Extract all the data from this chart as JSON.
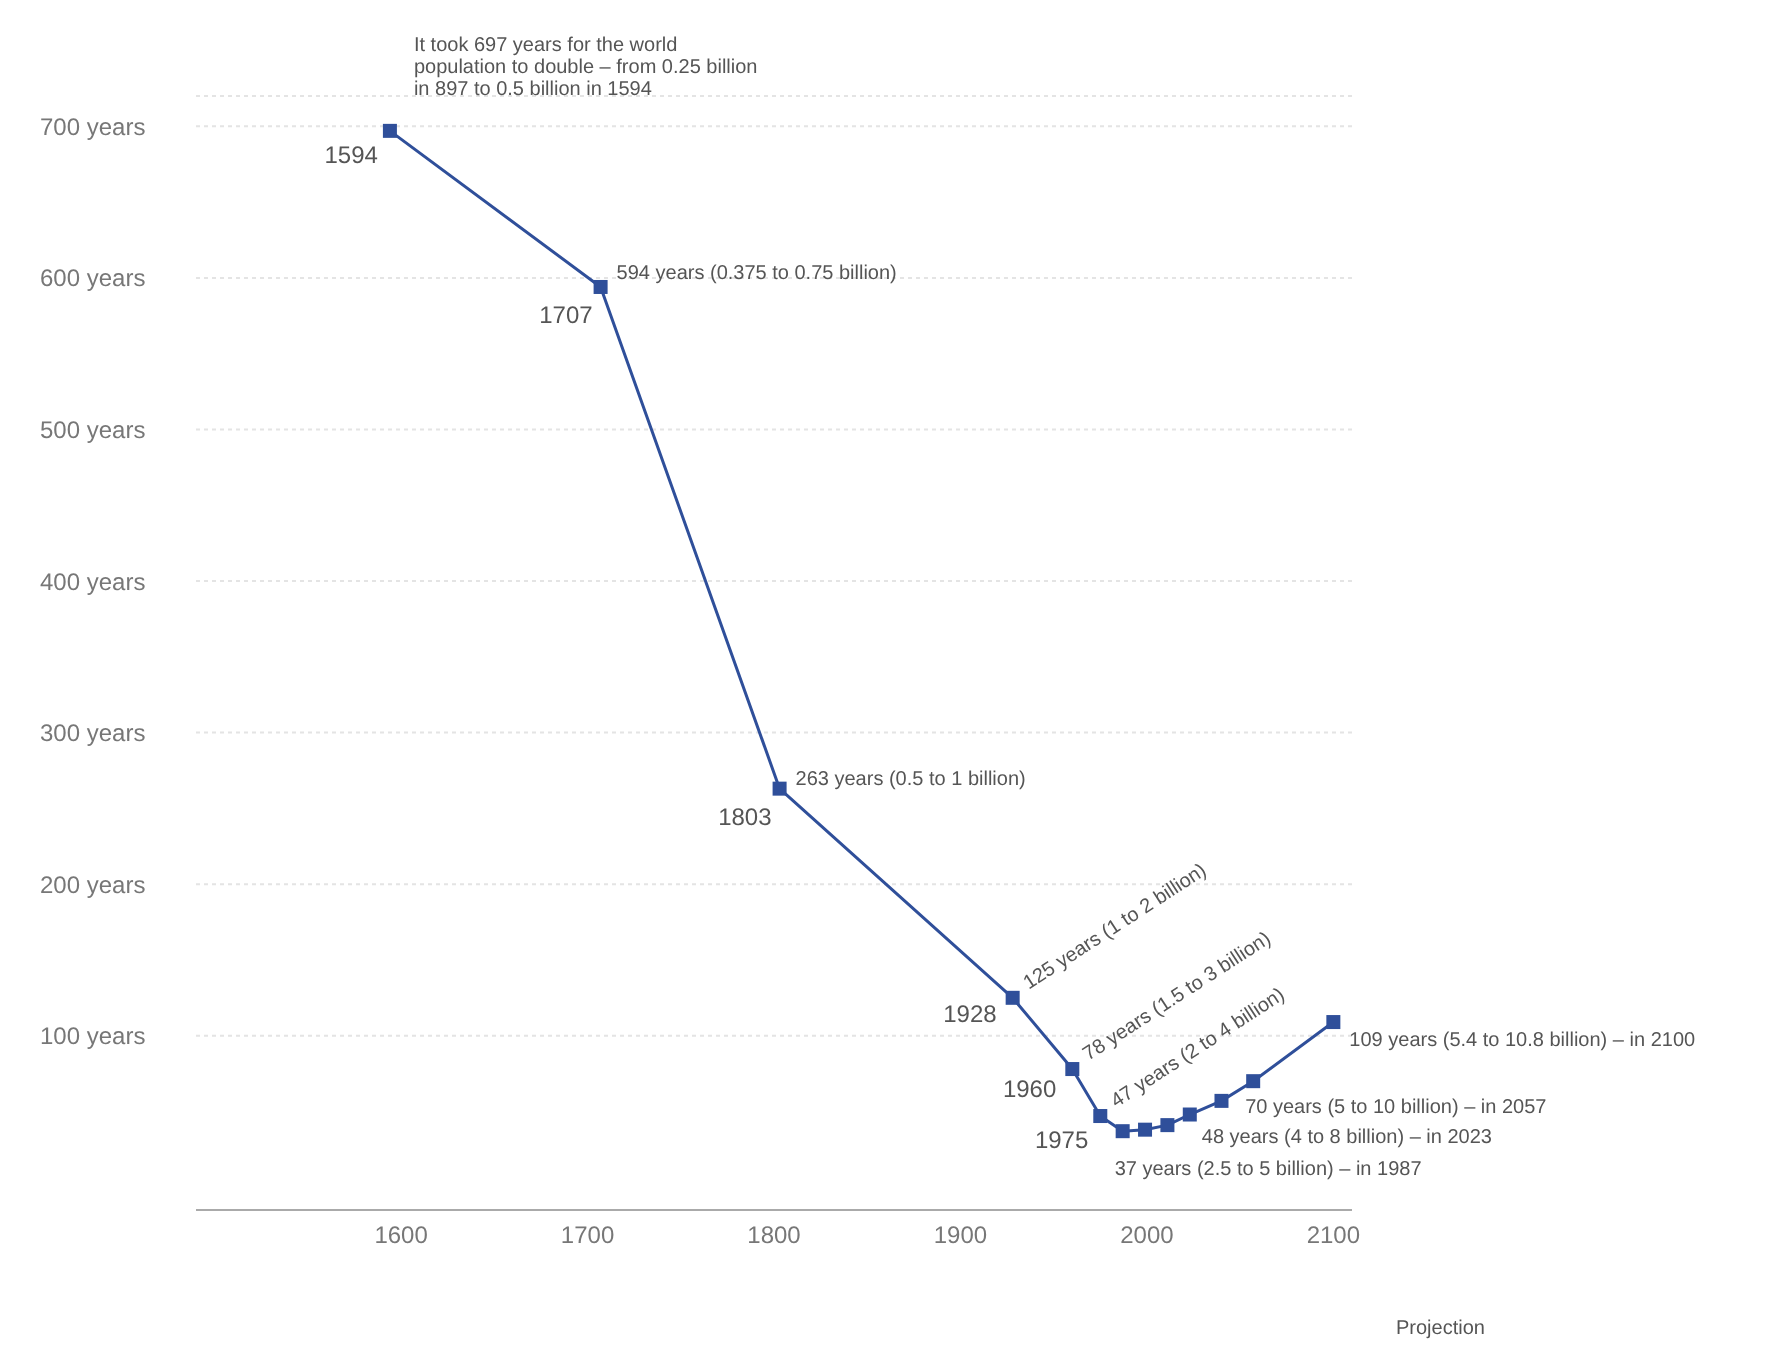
{
  "chart_data": {
    "type": "line",
    "x": [
      1594,
      1707,
      1803,
      1928,
      1960,
      1975,
      1987,
      1999,
      2011,
      2023,
      2040,
      2057,
      2100
    ],
    "series": [
      {
        "color": "#2f4f9a",
        "values": [
          697,
          594,
          263,
          125,
          78,
          47,
          37,
          38,
          41,
          48,
          57,
          70,
          109
        ]
      }
    ],
    "xlim": [
      1490,
      2110
    ],
    "xticks": [
      1600,
      1700,
      1800,
      1900,
      2000,
      2100
    ],
    "ylim": [
      -15,
      720
    ],
    "yticks": [
      {
        "value": 100,
        "label": "100 years"
      },
      {
        "value": 200,
        "label": "200 years"
      },
      {
        "value": 300,
        "label": "300 years"
      },
      {
        "value": 400,
        "label": "400 years"
      },
      {
        "value": 500,
        "label": "500 years"
      },
      {
        "value": 600,
        "label": "600 years"
      },
      {
        "value": 700,
        "label": "700 years"
      }
    ],
    "grid": "y",
    "marker": "square",
    "line_style": "solid",
    "annotations": [
      {
        "text": "It took 697 years for the world population to double – from 0.25 billion in 897 to 0.5 billion in 1594",
        "x": 1594,
        "y": 697
      },
      {
        "text": "1594",
        "x": 1594,
        "y": 697
      },
      {
        "text": "594 years (0.375 to 0.75 billion)",
        "x": 1707,
        "y": 594
      },
      {
        "text": "1707",
        "x": 1707,
        "y": 594
      },
      {
        "text": "263 years (0.5 to 1 billion)",
        "x": 1803,
        "y": 263
      },
      {
        "text": "1803",
        "x": 1803,
        "y": 263
      },
      {
        "text": "125 years (1 to 2 billion)",
        "x": 1928,
        "y": 125
      },
      {
        "text": "1928",
        "x": 1928,
        "y": 125
      },
      {
        "text": "78 years (1.5 to 3 billion)",
        "x": 1960,
        "y": 78
      },
      {
        "text": "1960",
        "x": 1960,
        "y": 78
      },
      {
        "text": "47 years (2 to 4 billion)",
        "x": 1975,
        "y": 47
      },
      {
        "text": "1975",
        "x": 1975,
        "y": 47
      },
      {
        "text": "37 years (2.5 to 5 billion) – in 1987",
        "x": 1987,
        "y": 37
      },
      {
        "text": "48 years (4 to 8 billion) – in 2023",
        "x": 2023,
        "y": 48
      },
      {
        "text": "70 years (5 to 10 billion) – in 2057",
        "x": 2057,
        "y": 70
      },
      {
        "text": "109 years (5.4 to 10.8 billion) – in 2100",
        "x": 2100,
        "y": 109
      },
      "Projection"
    ]
  }
}
